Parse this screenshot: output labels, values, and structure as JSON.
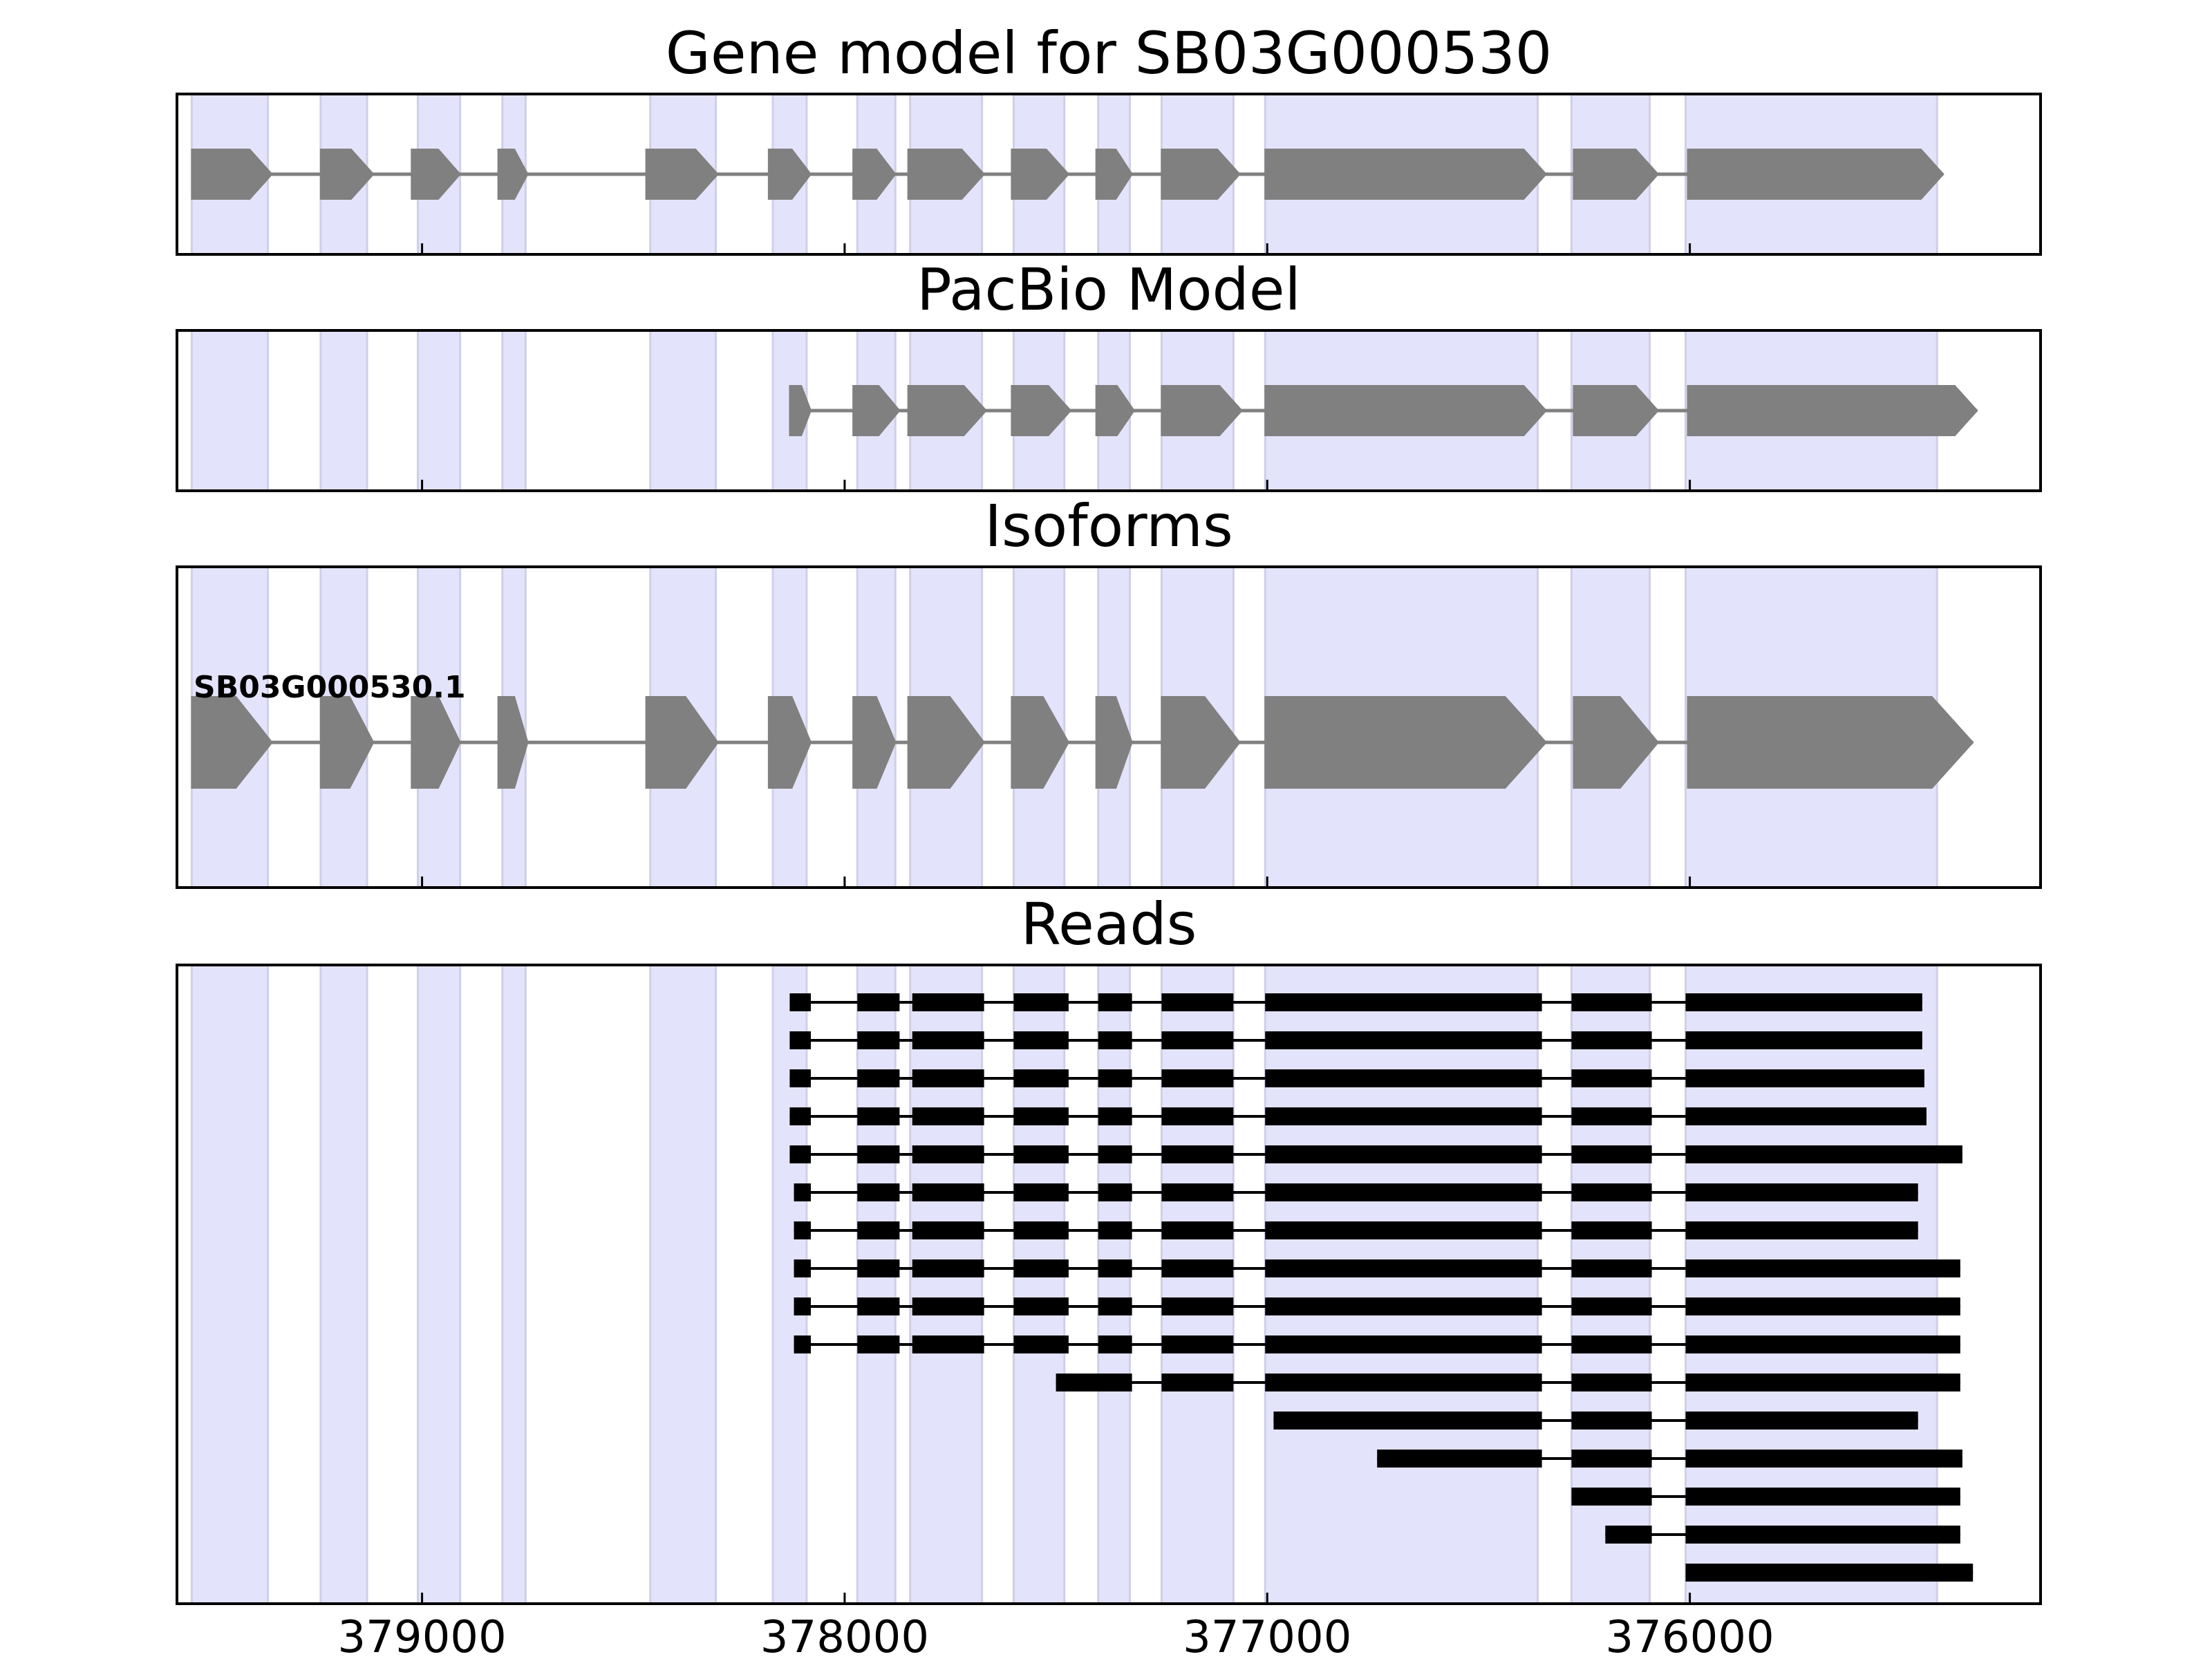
{
  "chart_data": {
    "type": "gene-structure",
    "x_axis": {
      "reversed": true,
      "range": [
        379580,
        375170
      ],
      "ticks": [
        379000,
        378000,
        377000,
        376000
      ],
      "tick_labels": [
        "379000",
        "378000",
        "377000",
        "376000"
      ]
    },
    "exon_regions": [
      [
        379545,
        379365
      ],
      [
        379240,
        379130
      ],
      [
        379010,
        378910
      ],
      [
        378810,
        378755
      ],
      [
        378460,
        378305
      ],
      [
        378170,
        378090
      ],
      [
        377970,
        377880
      ],
      [
        377845,
        377675
      ],
      [
        377600,
        377480
      ],
      [
        377400,
        377325
      ],
      [
        377250,
        377080
      ],
      [
        377005,
        376360
      ],
      [
        376280,
        376095
      ],
      [
        376010,
        375415
      ]
    ],
    "panels": [
      {
        "title": "Gene model for SB03G000530",
        "models": [
          {
            "label": "",
            "exons": [
              [
                379545,
                379355
              ],
              [
                379240,
                379115
              ],
              [
                379025,
                378910
              ],
              [
                378820,
                378750
              ],
              [
                378470,
                378300
              ],
              [
                378180,
                378080
              ],
              [
                377980,
                377880
              ],
              [
                377850,
                377670
              ],
              [
                377605,
                377470
              ],
              [
                377405,
                377320
              ],
              [
                377250,
                377065
              ],
              [
                377005,
                376340
              ],
              [
                376275,
                376075
              ],
              [
                376005,
                375400
              ]
            ]
          }
        ]
      },
      {
        "title": "PacBio Model",
        "models": [
          {
            "label": "",
            "exons": [
              [
                378130,
                378080
              ],
              [
                377980,
                377870
              ],
              [
                377850,
                377665
              ],
              [
                377605,
                377465
              ],
              [
                377405,
                377315
              ],
              [
                377250,
                377060
              ],
              [
                377005,
                376340
              ],
              [
                376275,
                376075
              ],
              [
                376005,
                375320
              ]
            ]
          }
        ]
      },
      {
        "title": "Isoforms",
        "models": [
          {
            "label": "SB03G000530.1",
            "exons": [
              [
                379545,
                379355
              ],
              [
                379240,
                379115
              ],
              [
                379025,
                378910
              ],
              [
                378820,
                378750
              ],
              [
                378470,
                378300
              ],
              [
                378180,
                378080
              ],
              [
                377980,
                377880
              ],
              [
                377850,
                377670
              ],
              [
                377605,
                377470
              ],
              [
                377405,
                377320
              ],
              [
                377250,
                377065
              ],
              [
                377005,
                376340
              ],
              [
                376275,
                376075
              ],
              [
                376005,
                375330
              ]
            ]
          }
        ]
      },
      {
        "title": "Reads",
        "reads": [
          [
            [
              378130,
              378080
            ],
            [
              377970,
              377870
            ],
            [
              377840,
              377670
            ],
            [
              377600,
              377470
            ],
            [
              377400,
              377320
            ],
            [
              377250,
              377080
            ],
            [
              377005,
              376350
            ],
            [
              376280,
              376090
            ],
            [
              376010,
              375450
            ]
          ],
          [
            [
              378130,
              378080
            ],
            [
              377970,
              377870
            ],
            [
              377840,
              377670
            ],
            [
              377600,
              377470
            ],
            [
              377400,
              377320
            ],
            [
              377250,
              377080
            ],
            [
              377005,
              376350
            ],
            [
              376280,
              376090
            ],
            [
              376010,
              375450
            ]
          ],
          [
            [
              378130,
              378080
            ],
            [
              377970,
              377870
            ],
            [
              377840,
              377670
            ],
            [
              377600,
              377470
            ],
            [
              377400,
              377320
            ],
            [
              377250,
              377080
            ],
            [
              377005,
              376350
            ],
            [
              376280,
              376090
            ],
            [
              376010,
              375445
            ]
          ],
          [
            [
              378130,
              378080
            ],
            [
              377970,
              377870
            ],
            [
              377840,
              377670
            ],
            [
              377600,
              377470
            ],
            [
              377400,
              377320
            ],
            [
              377250,
              377080
            ],
            [
              377005,
              376350
            ],
            [
              376280,
              376090
            ],
            [
              376010,
              375440
            ]
          ],
          [
            [
              378130,
              378080
            ],
            [
              377970,
              377870
            ],
            [
              377840,
              377670
            ],
            [
              377600,
              377470
            ],
            [
              377400,
              377320
            ],
            [
              377250,
              377080
            ],
            [
              377005,
              376350
            ],
            [
              376280,
              376090
            ],
            [
              376010,
              375355
            ]
          ],
          [
            [
              378120,
              378080
            ],
            [
              377970,
              377870
            ],
            [
              377840,
              377670
            ],
            [
              377600,
              377470
            ],
            [
              377400,
              377320
            ],
            [
              377250,
              377080
            ],
            [
              377005,
              376350
            ],
            [
              376280,
              376090
            ],
            [
              376010,
              375460
            ]
          ],
          [
            [
              378120,
              378080
            ],
            [
              377970,
              377870
            ],
            [
              377840,
              377670
            ],
            [
              377600,
              377470
            ],
            [
              377400,
              377320
            ],
            [
              377250,
              377080
            ],
            [
              377005,
              376350
            ],
            [
              376280,
              376090
            ],
            [
              376010,
              375460
            ]
          ],
          [
            [
              378120,
              378080
            ],
            [
              377970,
              377870
            ],
            [
              377840,
              377670
            ],
            [
              377600,
              377470
            ],
            [
              377400,
              377320
            ],
            [
              377250,
              377080
            ],
            [
              377005,
              376350
            ],
            [
              376280,
              376090
            ],
            [
              376010,
              375360
            ]
          ],
          [
            [
              378120,
              378080
            ],
            [
              377970,
              377870
            ],
            [
              377840,
              377670
            ],
            [
              377600,
              377470
            ],
            [
              377400,
              377320
            ],
            [
              377250,
              377080
            ],
            [
              377005,
              376350
            ],
            [
              376280,
              376090
            ],
            [
              376010,
              375360
            ]
          ],
          [
            [
              378120,
              378080
            ],
            [
              377970,
              377870
            ],
            [
              377840,
              377670
            ],
            [
              377600,
              377470
            ],
            [
              377400,
              377320
            ],
            [
              377250,
              377080
            ],
            [
              377005,
              376350
            ],
            [
              376280,
              376090
            ],
            [
              376010,
              375360
            ]
          ],
          [
            [
              377500,
              377390
            ],
            [
              377400,
              377320
            ],
            [
              377250,
              377080
            ],
            [
              377005,
              376350
            ],
            [
              376280,
              376090
            ],
            [
              376010,
              375360
            ]
          ],
          [
            [
              376985,
              376350
            ],
            [
              376280,
              376090
            ],
            [
              376010,
              375460
            ]
          ],
          [
            [
              376740,
              376350
            ],
            [
              376280,
              376090
            ],
            [
              376010,
              375355
            ]
          ],
          [
            [
              376280,
              376090
            ],
            [
              376010,
              375360
            ]
          ],
          [
            [
              376200,
              376090
            ],
            [
              376010,
              375360
            ]
          ],
          [
            [
              376005,
              375970
            ],
            [
              376010,
              375330
            ]
          ]
        ]
      }
    ]
  }
}
